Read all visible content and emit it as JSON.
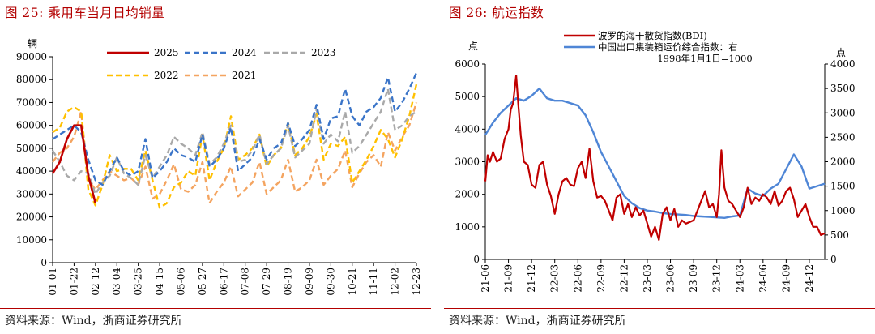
{
  "left_panel": {
    "figure_title": "图 25:   乘用车当月日均销量",
    "source": "资料来源：Wind，浙商证券研究所"
  },
  "right_panel": {
    "figure_title": "图 26:   航运指数",
    "source": "资料来源：Wind，浙商证券研究所"
  },
  "chart_data": [
    {
      "type": "line",
      "title": "",
      "ylabel": "辆",
      "ylim": [
        0,
        90000
      ],
      "yticks": [
        0,
        10000,
        20000,
        30000,
        40000,
        50000,
        60000,
        70000,
        80000,
        90000
      ],
      "xlim": [
        0,
        51
      ],
      "x_tick_labels": [
        "01-01",
        "01-22",
        "02-12",
        "03-04",
        "03-25",
        "04-15",
        "05-06",
        "05-27",
        "06-17",
        "07-08",
        "07-29",
        "08-19",
        "09-09",
        "09-30",
        "10-21",
        "11-11",
        "12-02",
        "12-23"
      ],
      "x_ticks_week": [
        0,
        3,
        6,
        9,
        12,
        15,
        18,
        21,
        24,
        27,
        30,
        33,
        36,
        39,
        42,
        45,
        48,
        51
      ],
      "legend": [
        "2025",
        "2024",
        "2023",
        "2022",
        "2021"
      ],
      "legend_position": "top",
      "series": [
        {
          "name": "2025",
          "color": "#c00000",
          "dash": "solid",
          "x": [
            0,
            1,
            2,
            3,
            4,
            5,
            6
          ],
          "y": [
            39000,
            44000,
            54000,
            60000,
            60000,
            38000,
            26000
          ]
        },
        {
          "name": "2024",
          "color": "#3a74c8",
          "dash": "dashed",
          "x": [
            0,
            1,
            2,
            3,
            4,
            5,
            6,
            7,
            8,
            9,
            10,
            11,
            12,
            13,
            14,
            15,
            16,
            17,
            18,
            19,
            20,
            21,
            22,
            23,
            24,
            25,
            26,
            27,
            28,
            29,
            30,
            31,
            32,
            33,
            34,
            35,
            36,
            37,
            38,
            39,
            40,
            41,
            42,
            43,
            44,
            45,
            46,
            47,
            48,
            49,
            50,
            51
          ],
          "y": [
            54000,
            56000,
            58000,
            60000,
            57000,
            45000,
            36000,
            34000,
            40000,
            46000,
            40000,
            38000,
            40000,
            54000,
            37000,
            40000,
            44000,
            50000,
            47000,
            46000,
            44000,
            56000,
            42000,
            45000,
            50000,
            59000,
            40000,
            43000,
            46000,
            54000,
            45000,
            50000,
            52000,
            61000,
            51000,
            54000,
            58000,
            69000,
            54000,
            63000,
            64000,
            76000,
            64000,
            60000,
            66000,
            68000,
            72000,
            81000,
            66000,
            70000,
            76000,
            83000
          ]
        },
        {
          "name": "2023",
          "color": "#a9a9a9",
          "dash": "dashed",
          "x": [
            0,
            1,
            2,
            3,
            4,
            5,
            6,
            7,
            8,
            9,
            10,
            11,
            12,
            13,
            14,
            15,
            16,
            17,
            18,
            19,
            20,
            21,
            22,
            23,
            24,
            25,
            26,
            27,
            28,
            29,
            30,
            31,
            32,
            33,
            34,
            35,
            36,
            37,
            38,
            39,
            40,
            41,
            42,
            43,
            44,
            45,
            46,
            47,
            48,
            49,
            50,
            51
          ],
          "y": [
            49000,
            44000,
            38000,
            36000,
            40000,
            39000,
            30000,
            35000,
            38000,
            46000,
            39000,
            37000,
            34000,
            47000,
            37000,
            42000,
            47000,
            55000,
            52000,
            50000,
            47000,
            57000,
            43000,
            46000,
            52000,
            60000,
            44000,
            45000,
            49000,
            56000,
            43000,
            47000,
            50000,
            60000,
            46000,
            49000,
            52000,
            67000,
            52000,
            56000,
            53000,
            66000,
            48000,
            51000,
            56000,
            61000,
            66000,
            76000,
            58000,
            60000,
            64000,
            66000
          ]
        },
        {
          "name": "2022",
          "color": "#ffc000",
          "dash": "dashed",
          "x": [
            0,
            1,
            2,
            3,
            4,
            5,
            6,
            7,
            8,
            9,
            10,
            11,
            12,
            13,
            14,
            15,
            16,
            17,
            18,
            19,
            20,
            21,
            22,
            23,
            24,
            25,
            26,
            27,
            28,
            29,
            30,
            31,
            32,
            33,
            34,
            35,
            36,
            37,
            38,
            39,
            40,
            41,
            42,
            43,
            44,
            45,
            46,
            47,
            48,
            49,
            50,
            51
          ],
          "y": [
            57000,
            59000,
            66000,
            68000,
            66000,
            32000,
            25000,
            34000,
            47000,
            40000,
            41000,
            41000,
            36000,
            49000,
            36000,
            24000,
            26000,
            33000,
            35000,
            40000,
            38000,
            56000,
            36000,
            44000,
            50000,
            64000,
            45000,
            47000,
            50000,
            56000,
            42000,
            47000,
            50000,
            61000,
            47000,
            50000,
            55000,
            65000,
            45000,
            52000,
            51000,
            55000,
            35000,
            40000,
            45000,
            51000,
            58000,
            54000,
            46000,
            54000,
            64000,
            78000
          ]
        },
        {
          "name": "2021",
          "color": "#f4a460",
          "dash": "dashed",
          "x": [
            0,
            1,
            2,
            3,
            4,
            5,
            6,
            7,
            8,
            9,
            10,
            11,
            12,
            13,
            14,
            15,
            16,
            17,
            18,
            19,
            20,
            21,
            22,
            23,
            24,
            25,
            26,
            27,
            28,
            29,
            30,
            31,
            32,
            33,
            34,
            35,
            36,
            37,
            38,
            39,
            40,
            41,
            42,
            43,
            44,
            45,
            46,
            47,
            48,
            49,
            50,
            51
          ],
          "y": [
            44000,
            48000,
            50000,
            55000,
            66000,
            36000,
            32000,
            36000,
            40000,
            38000,
            36000,
            37000,
            34000,
            42000,
            28000,
            30000,
            36000,
            43000,
            32000,
            31000,
            34000,
            44000,
            26000,
            31000,
            35000,
            42000,
            29000,
            32000,
            35000,
            44000,
            30000,
            33000,
            36000,
            45000,
            31000,
            33000,
            36000,
            45000,
            34000,
            38000,
            41000,
            49000,
            33000,
            39000,
            44000,
            47000,
            42000,
            57000,
            49000,
            55000,
            60000,
            70000
          ]
        }
      ]
    },
    {
      "type": "line",
      "title": "",
      "ylabel_left": "点",
      "ylabel_right": "点",
      "ylim_left": [
        0,
        6000
      ],
      "yticks_left": [
        0,
        1000,
        2000,
        3000,
        4000,
        5000,
        6000
      ],
      "ylim_right": [
        0,
        4000
      ],
      "yticks_right": [
        0,
        500,
        1000,
        1500,
        2000,
        2500,
        3000,
        3500,
        4000
      ],
      "x_tick_labels": [
        "21-06",
        "21-09",
        "21-12",
        "22-03",
        "22-06",
        "22-09",
        "22-12",
        "23-03",
        "23-06",
        "23-09",
        "23-12",
        "24-03",
        "24-06",
        "24-09",
        "24-12"
      ],
      "xlim": [
        0,
        44
      ],
      "x_ticks_month": [
        0,
        3,
        6,
        9,
        12,
        15,
        18,
        21,
        24,
        27,
        30,
        33,
        36,
        39,
        42
      ],
      "legend": [
        "波罗的海干散货指数(BDI)",
        "中国出口集装箱运价综合指数：右",
        "1998年1月1日=1000"
      ],
      "legend_position": "top-center",
      "series": [
        {
          "name": "波罗的海干散货指数(BDI)",
          "axis": "left",
          "color": "#c00000",
          "x": [
            0,
            0.3,
            0.6,
            1,
            1.5,
            2,
            2.5,
            3,
            3.3,
            3.6,
            4,
            4.3,
            4.6,
            5,
            5.5,
            6,
            6.5,
            7,
            7.5,
            8,
            8.5,
            9,
            9.5,
            10,
            10.5,
            11,
            11.5,
            12,
            12.5,
            13,
            13.5,
            14,
            14.5,
            15,
            15.5,
            16,
            16.5,
            17,
            17.5,
            18,
            18.5,
            19,
            19.5,
            20,
            20.5,
            21,
            21.5,
            22,
            22.5,
            23,
            23.5,
            24,
            24.5,
            25,
            25.5,
            26,
            26.5,
            27,
            27.5,
            28,
            28.5,
            29,
            29.5,
            30,
            30.3,
            30.6,
            31,
            31.5,
            32,
            32.5,
            33,
            33.5,
            34,
            34.5,
            35,
            35.5,
            36,
            36.5,
            37,
            37.5,
            38,
            38.5,
            39,
            39.5,
            40,
            40.5,
            41,
            41.5,
            42,
            42.5,
            43,
            43.5,
            44
          ],
          "y": [
            2400,
            3200,
            3000,
            3300,
            3000,
            3100,
            3700,
            4000,
            4600,
            4800,
            5650,
            4700,
            3800,
            3000,
            2900,
            2300,
            2200,
            2900,
            3000,
            2300,
            1950,
            1400,
            2000,
            2400,
            2500,
            2300,
            2250,
            2800,
            3000,
            2500,
            3400,
            2400,
            1900,
            1950,
            1800,
            1500,
            1200,
            1900,
            2000,
            1400,
            1700,
            1300,
            1600,
            1350,
            1500,
            1100,
            700,
            1000,
            600,
            1400,
            1600,
            1200,
            1550,
            1000,
            1200,
            1100,
            1150,
            1200,
            1500,
            1800,
            2100,
            1600,
            1700,
            1300,
            2000,
            3350,
            2200,
            1800,
            1700,
            1500,
            1300,
            1600,
            2200,
            1700,
            1900,
            1800,
            2000,
            1900,
            1700,
            2100,
            1650,
            1800,
            2100,
            2200,
            1850,
            1300,
            1500,
            1700,
            1300,
            1000,
            1000,
            750,
            800
          ]
        },
        {
          "name": "中国出口集装箱运价综合指数：右",
          "axis": "right",
          "color": "#4f86d6",
          "x": [
            0,
            1,
            2,
            3,
            4,
            5,
            6,
            7,
            8,
            9,
            10,
            11,
            12,
            13,
            14,
            15,
            16,
            17,
            18,
            19,
            20,
            21,
            22,
            23,
            24,
            25,
            26,
            27,
            28,
            29,
            30,
            31,
            32,
            33,
            34,
            35,
            36,
            37,
            38,
            39,
            40,
            41,
            42,
            43,
            44
          ],
          "y": [
            2550,
            2800,
            3000,
            3150,
            3300,
            3250,
            3350,
            3500,
            3300,
            3250,
            3250,
            3200,
            3150,
            2950,
            2600,
            2200,
            1900,
            1600,
            1300,
            1150,
            1050,
            1000,
            980,
            950,
            930,
            920,
            910,
            890,
            880,
            870,
            860,
            850,
            880,
            900,
            1450,
            1350,
            1300,
            1450,
            1550,
            1850,
            2150,
            1900,
            1450,
            1500,
            1550
          ]
        }
      ]
    }
  ]
}
